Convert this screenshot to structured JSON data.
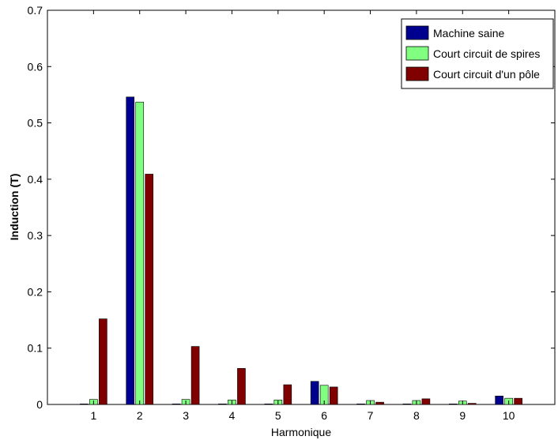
{
  "chart_data": {
    "type": "bar",
    "title": "",
    "xlabel": "Harmonique",
    "ylabel": "Induction  (T)",
    "categories": [
      "1",
      "2",
      "3",
      "4",
      "5",
      "6",
      "7",
      "8",
      "9",
      "10"
    ],
    "ylim": [
      0,
      0.7
    ],
    "yticks": [
      "0",
      "0.1",
      "0.2",
      "0.3",
      "0.4",
      "0.5",
      "0.6",
      "0.7"
    ],
    "grid": false,
    "legend_position": "top-right",
    "series": [
      {
        "name": "Machine saine",
        "color": "#00008f",
        "values": [
          0.001,
          0.546,
          0.001,
          0.001,
          0.001,
          0.041,
          0.001,
          0.001,
          0.001,
          0.015
        ]
      },
      {
        "name": "Court circuit de spires",
        "color": "#80ff80",
        "values": [
          0.009,
          0.537,
          0.009,
          0.008,
          0.008,
          0.034,
          0.007,
          0.007,
          0.006,
          0.011
        ]
      },
      {
        "name": "Court circuit d'un pôle",
        "color": "#800000",
        "values": [
          0.152,
          0.409,
          0.103,
          0.064,
          0.035,
          0.031,
          0.004,
          0.01,
          0.002,
          0.011
        ]
      }
    ]
  }
}
